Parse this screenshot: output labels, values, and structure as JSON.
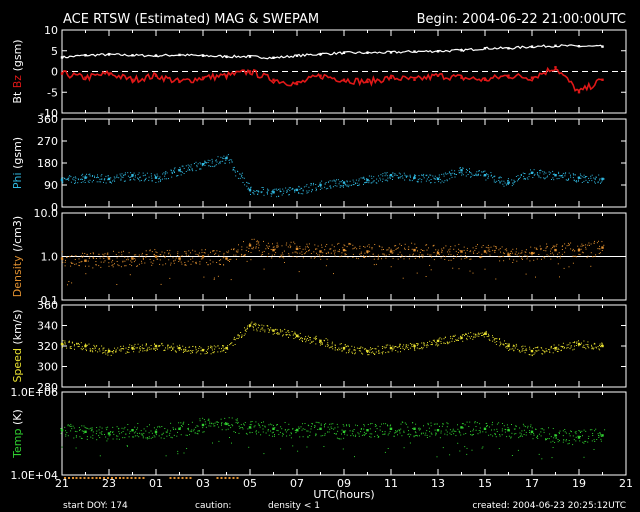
{
  "header": {
    "title": "ACE RTSW (Estimated) MAG & SWEPAM",
    "begin": "Begin: 2004-06-22 21:00:00UTC"
  },
  "footer": {
    "start_doy": "start DOY: 174",
    "caution": "caution:",
    "density_note": "density < 1",
    "created": "created: 2004-06-23 20:25:12UTC"
  },
  "colors": {
    "bt": "#ffffff",
    "bz": "#e01818",
    "phi": "#30b8e0",
    "density": "#e09030",
    "speed": "#e8e030",
    "temp": "#30d030",
    "caution": "#e09030"
  },
  "chart_data": {
    "type": "scatter",
    "x_axis": {
      "label": "UTC(hours)",
      "range_hours": [
        0,
        24
      ],
      "tick_labels": [
        "21",
        "23",
        "01",
        "03",
        "05",
        "07",
        "09",
        "11",
        "13",
        "15",
        "17",
        "19",
        "21"
      ]
    },
    "panels": [
      {
        "id": "mag",
        "ylabel_parts": [
          {
            "text": "Bt",
            "color": "#ffffff"
          },
          {
            "text": " Bz",
            "color": "#e01818"
          },
          {
            "text": " (gsm)",
            "color": "#ffffff"
          }
        ],
        "scale": "linear",
        "ylim": [
          -10,
          10
        ],
        "ticks": [
          -10,
          -5,
          0,
          5,
          10
        ],
        "tick_labels": [
          "-10",
          "-5",
          "0",
          "5",
          "10"
        ],
        "zero_line": true,
        "series": [
          {
            "label": "Bt",
            "color": "#ffffff",
            "style": "line",
            "x": [
              0,
              1,
              2,
              3,
              4,
              5,
              6,
              7,
              8,
              9,
              10,
              11,
              12,
              13,
              14,
              15,
              16,
              17,
              18,
              19,
              20,
              21,
              22,
              23
            ],
            "values": [
              3.4,
              3.9,
              4.1,
              3.9,
              3.8,
              4.0,
              3.8,
              3.6,
              3.6,
              3.3,
              3.8,
              4.2,
              4.5,
              4.5,
              4.6,
              4.8,
              4.9,
              5.1,
              5.6,
              5.6,
              6.0,
              6.2,
              6.1,
              6.0
            ]
          },
          {
            "label": "Bz",
            "color": "#e01818",
            "style": "line",
            "x": [
              0,
              1,
              2,
              3,
              4,
              5,
              6,
              7,
              8,
              9,
              10,
              11,
              12,
              13,
              14,
              15,
              16,
              17,
              18,
              19,
              20,
              21,
              22,
              23
            ],
            "values": [
              -0.5,
              -1.5,
              -0.5,
              -2.0,
              -1.0,
              -2.5,
              -1.5,
              -1.0,
              0.0,
              -2.0,
              -3.0,
              -1.0,
              -2.0,
              -2.5,
              -1.5,
              -2.0,
              -1.0,
              -1.5,
              -2.0,
              -1.0,
              -1.5,
              1.0,
              -5.0,
              -2.0
            ]
          }
        ]
      },
      {
        "id": "phi",
        "ylabel_parts": [
          {
            "text": "Phi",
            "color": "#30b8e0"
          },
          {
            "text": " (gsm)",
            "color": "#ffffff"
          }
        ],
        "scale": "linear",
        "ylim": [
          0,
          360
        ],
        "ticks": [
          0,
          90,
          180,
          270,
          360
        ],
        "tick_labels": [
          "0",
          "90",
          "180",
          "270",
          "360"
        ],
        "series": [
          {
            "label": "Phi",
            "color": "#30b8e0",
            "style": "dots",
            "x": [
              0,
              1,
              2,
              3,
              4,
              5,
              6,
              7,
              8,
              9,
              10,
              11,
              12,
              13,
              14,
              15,
              16,
              17,
              18,
              19,
              20,
              21,
              22,
              23
            ],
            "values": [
              110,
              120,
              115,
              130,
              120,
              150,
              175,
              200,
              70,
              60,
              70,
              90,
              100,
              110,
              130,
              120,
              115,
              150,
              130,
              100,
              140,
              130,
              120,
              115
            ]
          }
        ]
      },
      {
        "id": "density",
        "ylabel_parts": [
          {
            "text": "Density",
            "color": "#e09030"
          },
          {
            "text": " (/cm3)",
            "color": "#ffffff"
          }
        ],
        "scale": "log",
        "ylim": [
          0.1,
          10
        ],
        "ticks": [
          0.1,
          1,
          10
        ],
        "tick_labels": [
          "0.1",
          "1.0",
          "10.0"
        ],
        "ref_line": 1,
        "series": [
          {
            "label": "Density",
            "color": "#e09030",
            "style": "dots",
            "x": [
              0,
              1,
              2,
              3,
              4,
              5,
              6,
              7,
              8,
              9,
              10,
              11,
              12,
              13,
              14,
              15,
              16,
              17,
              18,
              19,
              20,
              21,
              22,
              23
            ],
            "values": [
              0.9,
              0.8,
              0.9,
              0.9,
              1.0,
              0.9,
              1.0,
              0.9,
              1.8,
              1.4,
              1.5,
              1.3,
              1.4,
              1.3,
              1.3,
              1.4,
              1.2,
              1.3,
              1.3,
              1.1,
              1.2,
              1.4,
              1.4,
              1.6
            ]
          }
        ]
      },
      {
        "id": "speed",
        "ylabel_parts": [
          {
            "text": "Speed",
            "color": "#e8e030"
          },
          {
            "text": " (km/s)",
            "color": "#ffffff"
          }
        ],
        "scale": "linear",
        "ylim": [
          280,
          360
        ],
        "ticks": [
          280,
          300,
          320,
          340,
          360
        ],
        "tick_labels": [
          "280",
          "300",
          "320",
          "340",
          "360"
        ],
        "series": [
          {
            "label": "Speed",
            "color": "#e8e030",
            "style": "dots",
            "x": [
              0,
              1,
              2,
              3,
              4,
              5,
              6,
              7,
              8,
              9,
              10,
              11,
              12,
              13,
              14,
              15,
              16,
              17,
              18,
              19,
              20,
              21,
              22,
              23
            ],
            "values": [
              322,
              320,
              315,
              318,
              320,
              318,
              316,
              318,
              340,
              335,
              330,
              325,
              318,
              315,
              318,
              320,
              325,
              328,
              332,
              320,
              315,
              318,
              322,
              320
            ]
          }
        ]
      },
      {
        "id": "temp",
        "ylabel_parts": [
          {
            "text": "Temp",
            "color": "#30d030"
          },
          {
            "text": " (K)",
            "color": "#ffffff"
          }
        ],
        "scale": "log",
        "ylim": [
          10000,
          1000000
        ],
        "ticks": [
          10000,
          1000000
        ],
        "tick_labels": [
          "1.0E+04",
          "1.0E+06"
        ],
        "series": [
          {
            "label": "Temp",
            "color": "#30d030",
            "style": "dots",
            "x": [
              0,
              1,
              2,
              3,
              4,
              5,
              6,
              7,
              8,
              9,
              10,
              11,
              12,
              13,
              14,
              15,
              16,
              17,
              18,
              19,
              20,
              21,
              22,
              23
            ],
            "values": [
              120000,
              110000,
              100000,
              120000,
              110000,
              130000,
              160000,
              170000,
              140000,
              130000,
              120000,
              130000,
              110000,
              120000,
              130000,
              130000,
              120000,
              140000,
              130000,
              120000,
              110000,
              90000,
              80000,
              90000
            ]
          }
        ]
      }
    ]
  }
}
